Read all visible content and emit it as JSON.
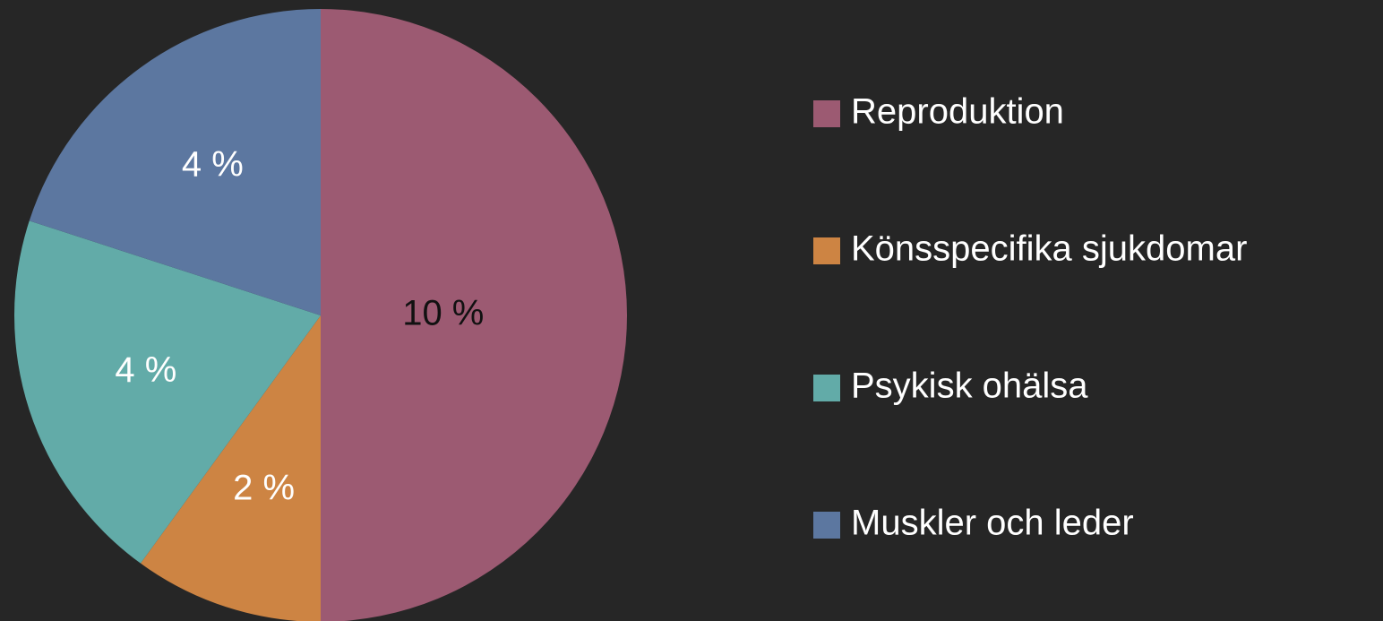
{
  "chart_data": {
    "type": "pie",
    "categories": [
      "Reproduktion",
      "Könsspecifika sjukdomar",
      "Psykisk ohälsa",
      "Muskler och leder"
    ],
    "values": [
      10,
      2,
      4,
      4
    ],
    "value_labels": [
      "10 %",
      "2 %",
      "4 %",
      "4 %"
    ],
    "colors": [
      "#9c5a72",
      "#cd8443",
      "#62aba8",
      "#5c77a0"
    ],
    "label_colors": [
      "#111111",
      "#ffffff",
      "#ffffff",
      "#ffffff"
    ],
    "legend": "right"
  }
}
